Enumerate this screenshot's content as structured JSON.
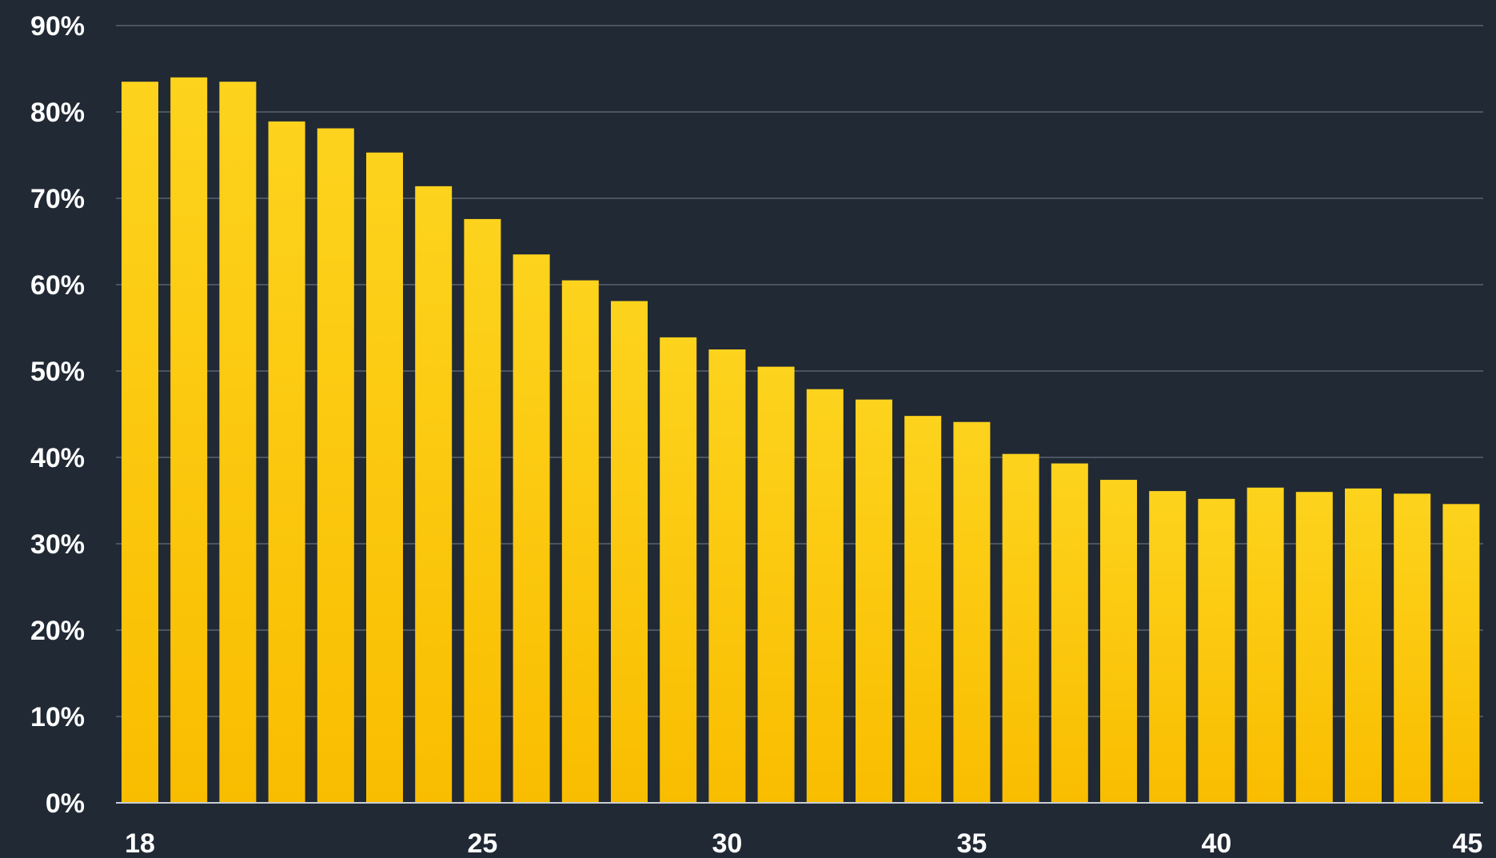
{
  "chart_data": {
    "type": "bar",
    "title": "",
    "xlabel": "",
    "ylabel": "",
    "ylim": [
      0,
      90
    ],
    "yticks": [
      "0%",
      "10%",
      "20%",
      "30%",
      "40%",
      "50%",
      "60%",
      "70%",
      "80%",
      "90%"
    ],
    "xticks_shown": [
      "18",
      "25",
      "30",
      "35",
      "40",
      "45"
    ],
    "categories": [
      18,
      19,
      20,
      21,
      22,
      23,
      24,
      25,
      26,
      27,
      28,
      29,
      30,
      31,
      32,
      33,
      34,
      35,
      36,
      37,
      38,
      39,
      40,
      41,
      42,
      43,
      44,
      45
    ],
    "values": [
      83.5,
      84.0,
      83.5,
      78.9,
      78.1,
      75.3,
      71.4,
      67.6,
      63.5,
      60.5,
      58.1,
      53.9,
      52.5,
      50.5,
      47.9,
      46.7,
      44.8,
      44.1,
      40.4,
      39.3,
      37.4,
      36.1,
      35.2,
      36.5,
      36.0,
      36.4,
      35.8,
      34.6
    ],
    "grid": true,
    "legend": "none",
    "colors": {
      "background": "#212935",
      "bar_top": "#fdd31d",
      "bar_bottom": "#f9bd00",
      "grid": "#5b6270",
      "text": "#ffffff"
    }
  }
}
